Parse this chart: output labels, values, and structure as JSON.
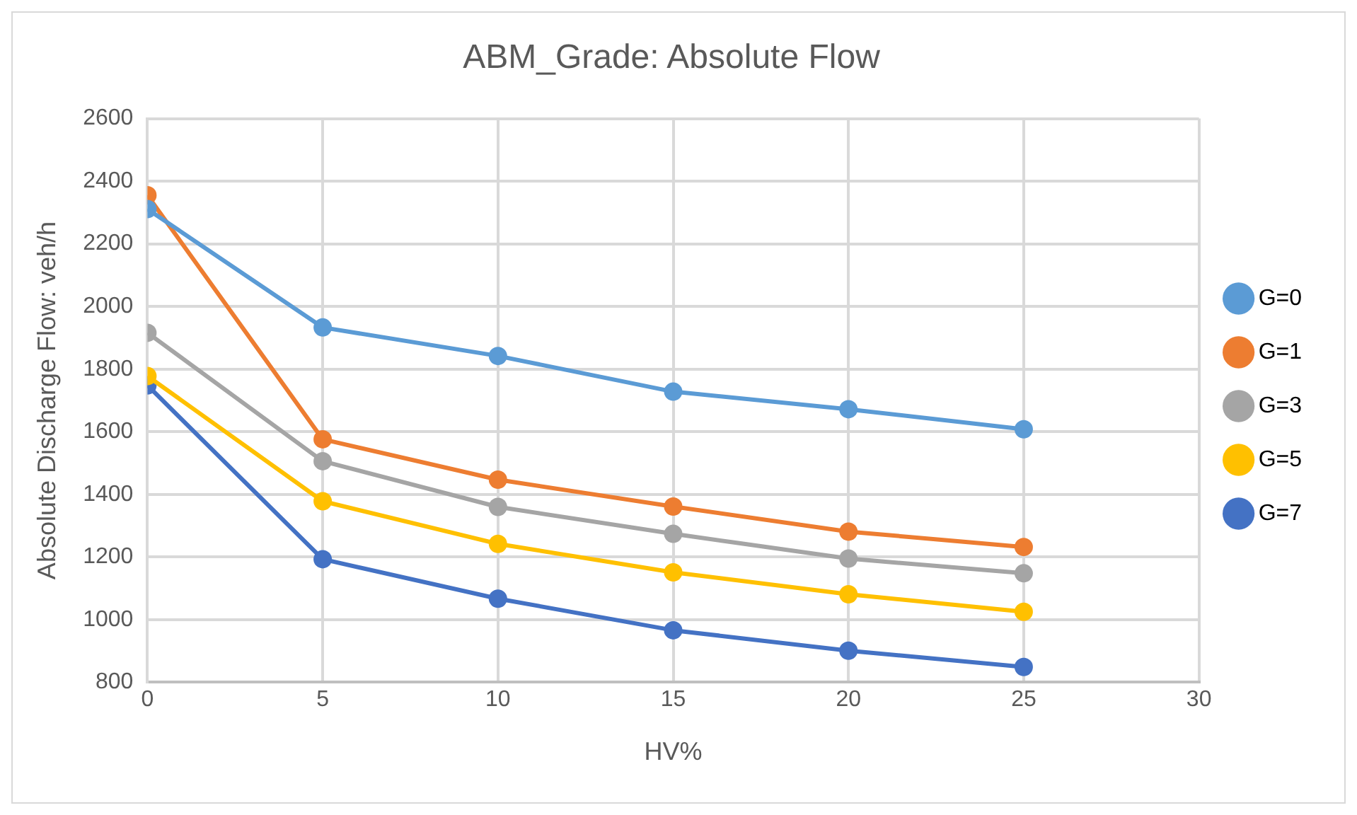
{
  "chart_data": {
    "type": "line",
    "title": "ABM_Grade: Absolute Flow",
    "xlabel": "HV%",
    "ylabel": "Absolute Discharge Flow: veh/h",
    "x": [
      0,
      5,
      10,
      15,
      20,
      25
    ],
    "series": [
      {
        "name": "G=0",
        "color": "#5b9bd5",
        "values": [
          2311,
          1933,
          1842,
          1728,
          1672,
          1608
        ]
      },
      {
        "name": "G=1",
        "color": "#ed7d31",
        "values": [
          2355,
          1576,
          1447,
          1361,
          1281,
          1232
        ]
      },
      {
        "name": "G=3",
        "color": "#a5a5a5",
        "values": [
          1916,
          1506,
          1360,
          1274,
          1195,
          1148
        ]
      },
      {
        "name": "G=5",
        "color": "#ffc000",
        "values": [
          1778,
          1378,
          1242,
          1151,
          1081,
          1025
        ]
      },
      {
        "name": "G=7",
        "color": "#4472c4",
        "values": [
          1748,
          1193,
          1067,
          966,
          901,
          849
        ]
      }
    ],
    "xlim": [
      0,
      30
    ],
    "xticks": [
      0,
      5,
      10,
      15,
      20,
      25,
      30
    ],
    "ylim": [
      800,
      2600
    ],
    "yticks": [
      800,
      1000,
      1200,
      1400,
      1600,
      1800,
      2000,
      2200,
      2400,
      2600
    ],
    "grid": true,
    "legend": "right",
    "marker": "circle",
    "line_style": "solid"
  }
}
